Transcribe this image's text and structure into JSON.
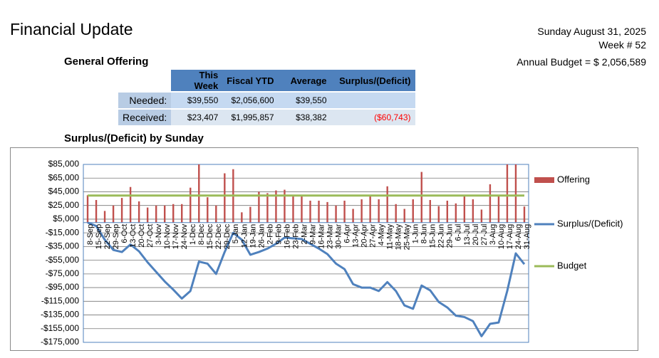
{
  "header": {
    "title": "Financial Update",
    "date": "Sunday August 31, 2025",
    "week": "Week # 52",
    "budget": "Annual Budget = $ 2,056,589"
  },
  "table": {
    "title": "General Offering",
    "columns": [
      "This Week",
      "Fiscal YTD",
      "Average",
      "Surplus/(Deficit)"
    ],
    "rows": [
      [
        "Needed:",
        "$39,550",
        "$2,056,600",
        "$39,550"
      ],
      [
        "Received:",
        "$23,407",
        "$1,995,857",
        "$38,382",
        "($60,743)"
      ]
    ]
  },
  "chart_data": {
    "type": "combo",
    "title": "Surplus/(Deficit) by Sunday",
    "categories": [
      "8-Sep",
      "15-Sep",
      "22-Sep",
      "29-Sep",
      "6-Oct",
      "13-Oct",
      "20-Oct",
      "27-Oct",
      "3-Nov",
      "10-Nov",
      "17-Nov",
      "24-Nov",
      "1-Dec",
      "8-Dec",
      "15-Dec",
      "22-Dec",
      "29-Dec",
      "5-Jan",
      "12-Jan",
      "19-Jan",
      "26-Jan",
      "2-Feb",
      "9-Feb",
      "16-Feb",
      "23-Feb",
      "2-Mar",
      "9-Mar",
      "16-Mar",
      "23-Mar",
      "30-Mar",
      "6-Apr",
      "13-Apr",
      "20-Apr",
      "27-Apr",
      "4-May",
      "11-May",
      "18-May",
      "25-May",
      "1-Jun",
      "8-Jun",
      "15-Jun",
      "22-Jun",
      "29-Jun",
      "6-Jul",
      "13-Jul",
      "20-Jul",
      "27-Jul",
      "3-Aug",
      "10-Aug",
      "17-Aug",
      "24-Aug",
      "31-Aug"
    ],
    "series": [
      {
        "name": "Offering",
        "type": "bar",
        "color": "#c0504d",
        "values": [
          40000,
          33000,
          17000,
          25000,
          36000,
          52000,
          31000,
          22000,
          25000,
          25000,
          27000,
          27000,
          51000,
          85000,
          37000,
          25000,
          72000,
          78000,
          15000,
          23000,
          45000,
          43000,
          47000,
          48000,
          39000,
          39000,
          32000,
          32000,
          30000,
          25000,
          32000,
          20000,
          34000,
          39000,
          34000,
          53000,
          27000,
          20000,
          34000,
          74000,
          33000,
          24000,
          32000,
          28000,
          39000,
          34000,
          19000,
          56000,
          39000,
          85000,
          85000,
          23407
        ]
      },
      {
        "name": "Surplus/(Deficit)",
        "type": "line",
        "color": "#4f81bd",
        "values": [
          0,
          -5000,
          -25000,
          -40000,
          -43000,
          -32000,
          -42000,
          -58000,
          -72000,
          -86000,
          -98000,
          -111000,
          -100000,
          -57000,
          -60000,
          -75000,
          -43000,
          -15000,
          -25000,
          -47000,
          -43000,
          -38000,
          -31000,
          -22000,
          -23000,
          -24000,
          -31000,
          -38000,
          -46000,
          -60000,
          -68000,
          -90000,
          -95000,
          -95000,
          -100000,
          -87000,
          -100000,
          -121000,
          -126000,
          -92000,
          -99000,
          -116000,
          -124000,
          -136000,
          -138000,
          -144000,
          -166000,
          -148000,
          -146000,
          -100000,
          -45000,
          -60743
        ]
      },
      {
        "name": "Budget",
        "type": "line",
        "color": "#9bbb59",
        "values": [
          39550,
          39550,
          39550,
          39550,
          39550,
          39550,
          39550,
          39550,
          39550,
          39550,
          39550,
          39550,
          39550,
          39550,
          39550,
          39550,
          39550,
          39550,
          39550,
          39550,
          39550,
          39550,
          39550,
          39550,
          39550,
          39550,
          39550,
          39550,
          39550,
          39550,
          39550,
          39550,
          39550,
          39550,
          39550,
          39550,
          39550,
          39550,
          39550,
          39550,
          39550,
          39550,
          39550,
          39550,
          39550,
          39550,
          39550,
          39550,
          39550,
          39550,
          39550,
          39550
        ]
      }
    ],
    "ylim": [
      -175000,
      85000
    ],
    "yticks": [
      {
        "value": -175000,
        "label": "-$175,000"
      },
      {
        "value": -155000,
        "label": "-$155,000"
      },
      {
        "value": -135000,
        "label": "-$135,000"
      },
      {
        "value": -115000,
        "label": "-$115,000"
      },
      {
        "value": -95000,
        "label": "-$95,000"
      },
      {
        "value": -75000,
        "label": "-$75,000"
      },
      {
        "value": -55000,
        "label": "-$55,000"
      },
      {
        "value": -35000,
        "label": "-$35,000"
      },
      {
        "value": -15000,
        "label": "-$15,000"
      },
      {
        "value": 5000,
        "label": "$5,000"
      },
      {
        "value": 25000,
        "label": "$25,000"
      },
      {
        "value": 45000,
        "label": "$45,000"
      },
      {
        "value": 65000,
        "label": "$65,000"
      },
      {
        "value": 85000,
        "label": "$85,000"
      }
    ],
    "grid": true,
    "legend": "right"
  }
}
